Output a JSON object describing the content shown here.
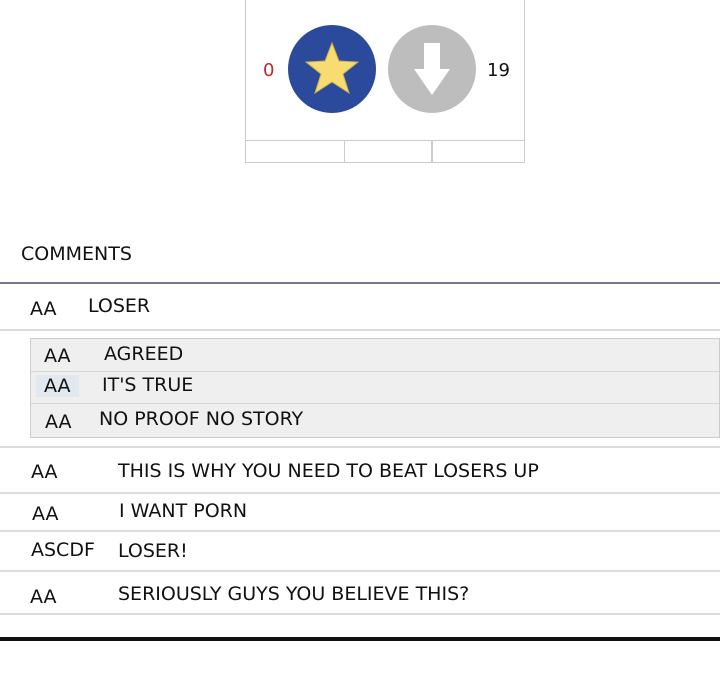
{
  "vote": {
    "star_count": "0",
    "down_count": "19",
    "star_color": "#2b4a9b",
    "down_color": "#bdbdbd",
    "count_left_color": "#c0262c"
  },
  "comments_title": "COMMENTS",
  "comments": [
    {
      "user": "AA",
      "text": "LOSER"
    }
  ],
  "replies": [
    {
      "user": "AA",
      "text": "AGREED"
    },
    {
      "user": "AA",
      "text": "IT'S TRUE"
    },
    {
      "user": "AA",
      "text": "NO PROOF NO STORY"
    }
  ],
  "more": [
    {
      "user": "AA",
      "text": "THIS IS WHY YOU NEED TO BEAT LOSERS UP"
    },
    {
      "user": "AA",
      "text": "I WANT PORN"
    },
    {
      "user": "ASCDF",
      "text": "LOSER!"
    },
    {
      "user": "AA",
      "text": "SERIOUSLY GUYS YOU BELIEVE THIS?"
    }
  ]
}
